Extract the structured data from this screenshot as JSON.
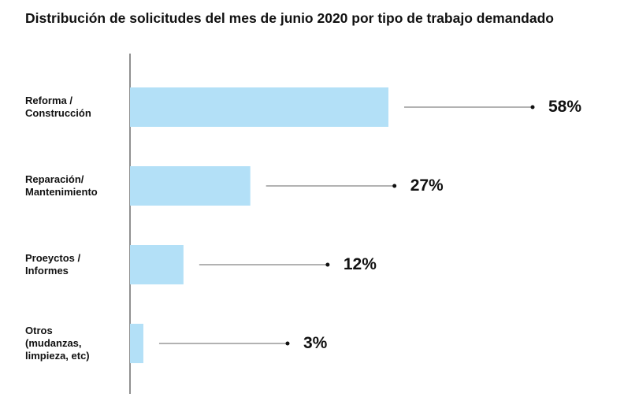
{
  "chart_data": {
    "type": "bar",
    "orientation": "horizontal",
    "title": "Distribución de solicitudes del mes de junio 2020 por tipo de trabajo demandado",
    "categories": [
      "Reforma /\nConstrucción",
      "Reparación/\nMantenimiento",
      "Proeyctos /\nInformes",
      "Otros\n(mudanzas,\nlimpieza, etc)"
    ],
    "values": [
      58,
      27,
      12,
      3
    ],
    "value_labels": [
      "58%",
      "27%",
      "12%",
      "3%"
    ],
    "color": "#b3e0f7"
  }
}
